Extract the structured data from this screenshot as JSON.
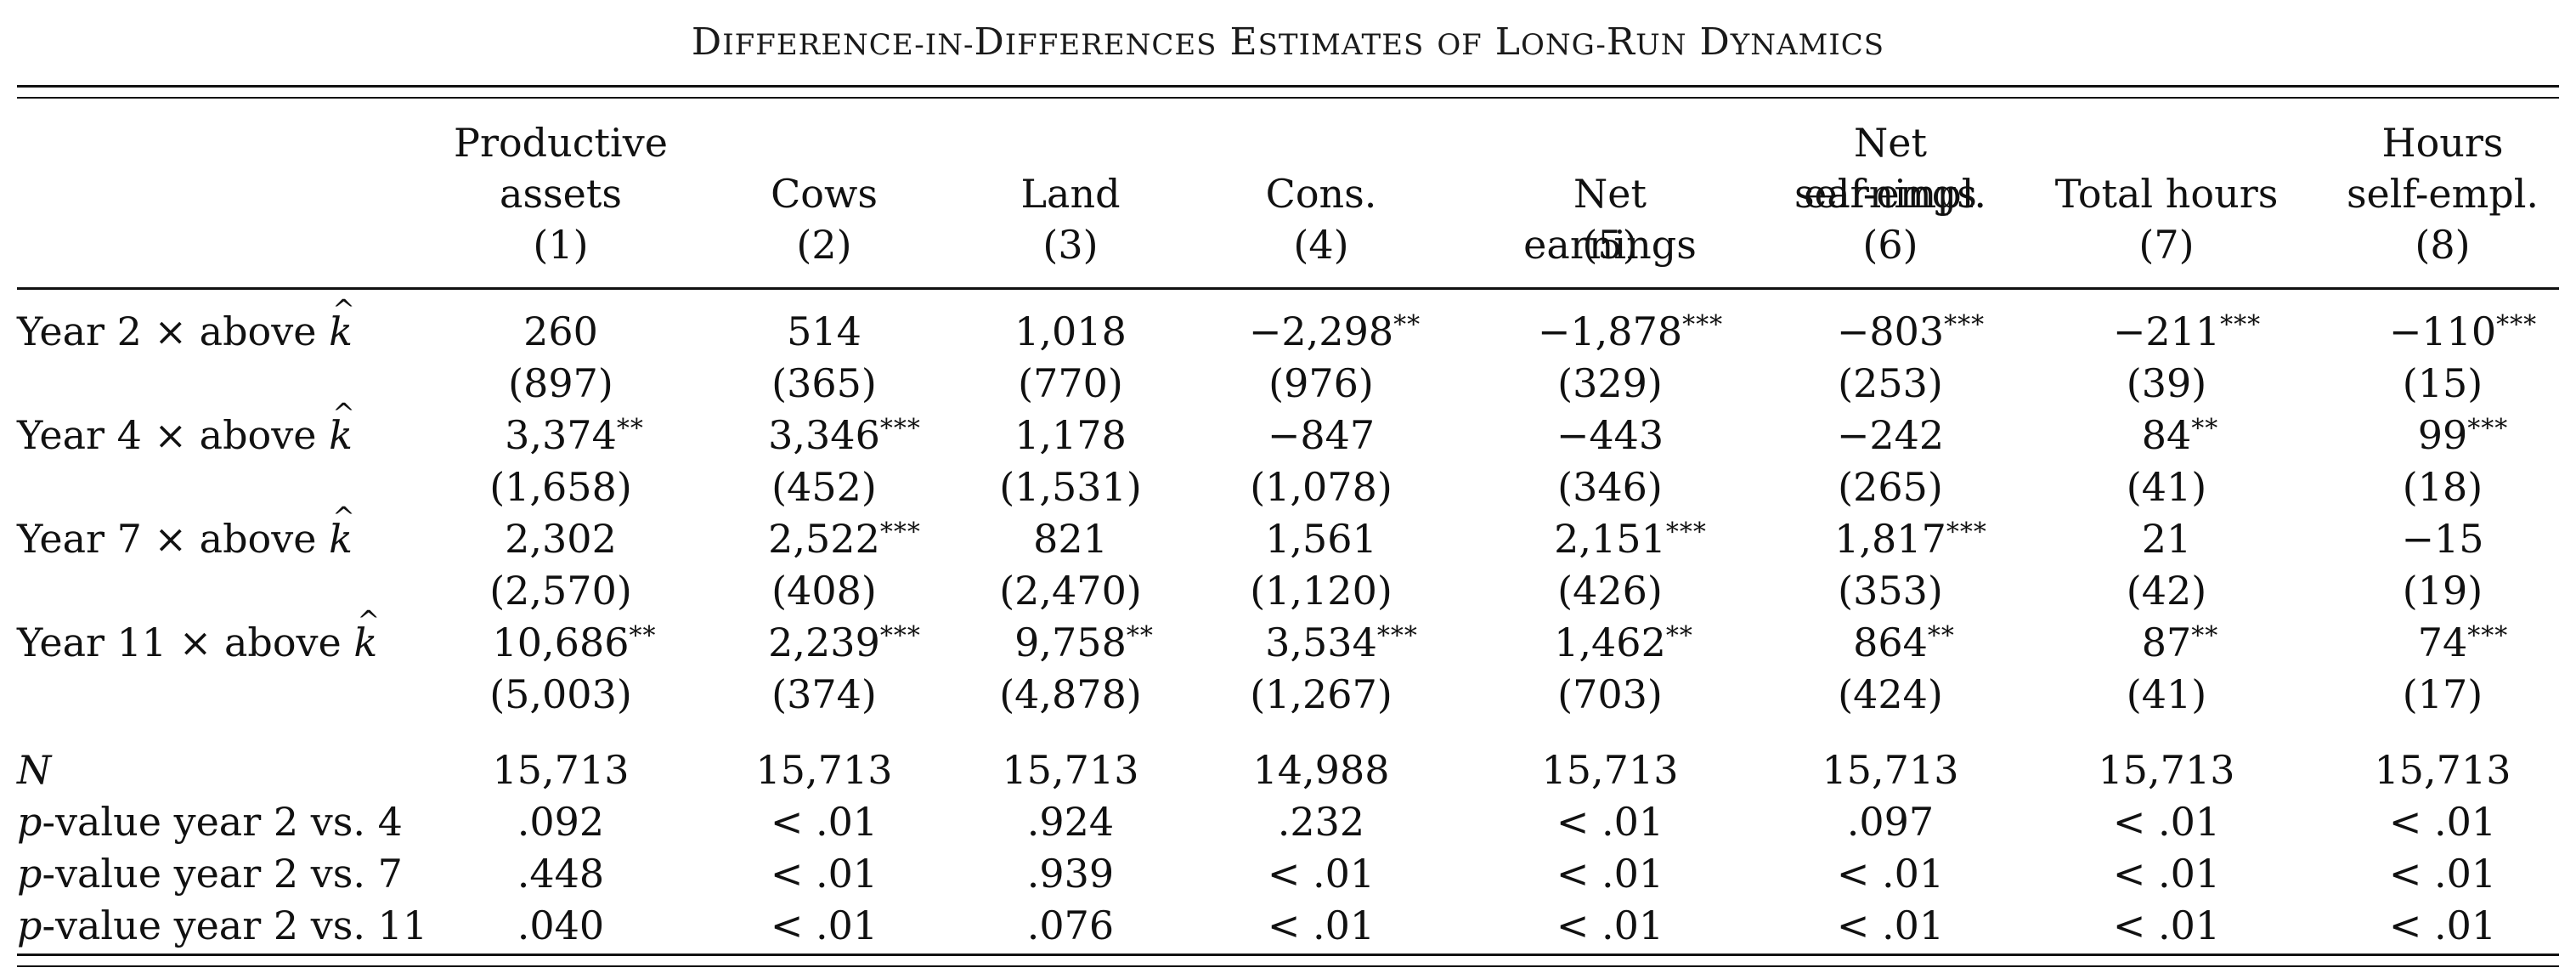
{
  "table": {
    "title": "Difference-in-Differences Estimates of Long-Run Dynamics",
    "columns": [
      {
        "lines": [
          "Productive",
          "assets",
          "(1)"
        ]
      },
      {
        "lines": [
          "",
          "Cows",
          "(2)"
        ]
      },
      {
        "lines": [
          "",
          "Land",
          "(3)"
        ]
      },
      {
        "lines": [
          "",
          "Cons.",
          "(4)"
        ]
      },
      {
        "lines": [
          "",
          "Net earnings",
          "(5)"
        ]
      },
      {
        "lines": [
          "Net earnings",
          "self-empl.",
          "(6)"
        ]
      },
      {
        "lines": [
          "",
          "Total hours",
          "(7)"
        ]
      },
      {
        "lines": [
          "Hours",
          "self-empl.",
          "(8)"
        ]
      }
    ],
    "coef_rows": [
      {
        "label_prefix": "Year 2 × above ",
        "label_var": "k",
        "estimates": [
          [
            "260",
            ""
          ],
          [
            "514",
            ""
          ],
          [
            "1,018",
            ""
          ],
          [
            "−2,298",
            "**"
          ],
          [
            "−1,878",
            "***"
          ],
          [
            "−803",
            "***"
          ],
          [
            "−211",
            "***"
          ],
          [
            "−110",
            "***"
          ]
        ],
        "se": [
          "(897)",
          "(365)",
          "(770)",
          "(976)",
          "(329)",
          "(253)",
          "(39)",
          "(15)"
        ]
      },
      {
        "label_prefix": "Year 4 × above ",
        "label_var": "k",
        "estimates": [
          [
            "3,374",
            "**"
          ],
          [
            "3,346",
            "***"
          ],
          [
            "1,178",
            ""
          ],
          [
            "−847",
            ""
          ],
          [
            "−443",
            ""
          ],
          [
            "−242",
            ""
          ],
          [
            "84",
            "**"
          ],
          [
            "99",
            "***"
          ]
        ],
        "se": [
          "(1,658)",
          "(452)",
          "(1,531)",
          "(1,078)",
          "(346)",
          "(265)",
          "(41)",
          "(18)"
        ]
      },
      {
        "label_prefix": "Year 7 × above ",
        "label_var": "k",
        "estimates": [
          [
            "2,302",
            ""
          ],
          [
            "2,522",
            "***"
          ],
          [
            "821",
            ""
          ],
          [
            "1,561",
            ""
          ],
          [
            "2,151",
            "***"
          ],
          [
            "1,817",
            "***"
          ],
          [
            "21",
            ""
          ],
          [
            "−15",
            ""
          ]
        ],
        "se": [
          "(2,570)",
          "(408)",
          "(2,470)",
          "(1,120)",
          "(426)",
          "(353)",
          "(42)",
          "(19)"
        ]
      },
      {
        "label_prefix": "Year 11 × above ",
        "label_var": "k",
        "estimates": [
          [
            "10,686",
            "**"
          ],
          [
            "2,239",
            "***"
          ],
          [
            "9,758",
            "**"
          ],
          [
            "3,534",
            "***"
          ],
          [
            "1,462",
            "**"
          ],
          [
            "864",
            "**"
          ],
          [
            "87",
            "**"
          ],
          [
            "74",
            "***"
          ]
        ],
        "se": [
          "(5,003)",
          "(374)",
          "(4,878)",
          "(1,267)",
          "(703)",
          "(424)",
          "(41)",
          "(17)"
        ]
      }
    ],
    "stat_rows": [
      {
        "label_italic": "N",
        "label_rest": "",
        "values": [
          "15,713",
          "15,713",
          "15,713",
          "14,988",
          "15,713",
          "15,713",
          "15,713",
          "15,713"
        ]
      },
      {
        "label_italic": "p",
        "label_rest": "-value year 2 vs. 4",
        "values": [
          ".092",
          "< .01",
          ".924",
          ".232",
          "< .01",
          ".097",
          "< .01",
          "< .01"
        ]
      },
      {
        "label_italic": "p",
        "label_rest": "-value year 2 vs. 7",
        "values": [
          ".448",
          "< .01",
          ".939",
          "< .01",
          "< .01",
          "< .01",
          "< .01",
          "< .01"
        ]
      },
      {
        "label_italic": "p",
        "label_rest": "-value year 2 vs. 11",
        "values": [
          ".040",
          "< .01",
          ".076",
          "< .01",
          "< .01",
          "< .01",
          "< .01",
          "< .01"
        ]
      }
    ]
  }
}
